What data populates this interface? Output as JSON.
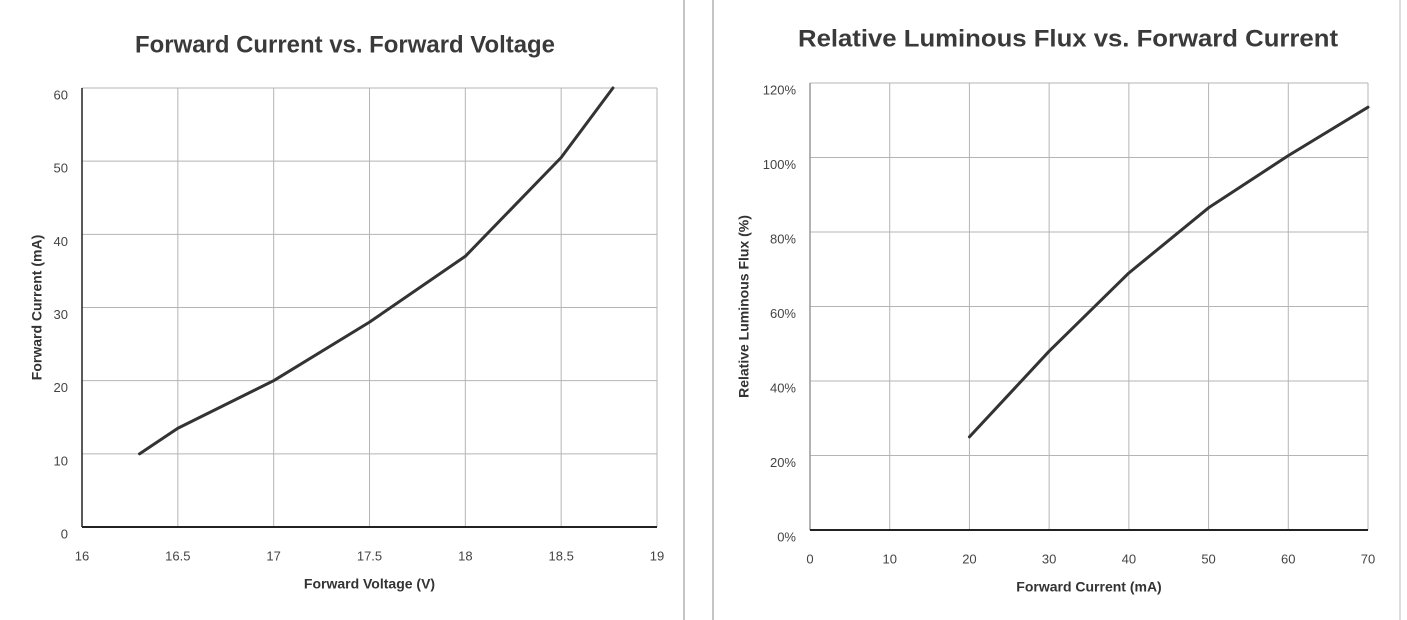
{
  "chart_data": [
    {
      "type": "line",
      "title": "Forward Current vs. Forward Voltage",
      "x_label": "Forward Voltage (V)",
      "y_label": "Forward Current (mA)",
      "x": [
        16.3,
        16.5,
        17,
        17.5,
        18,
        18.5,
        18.77
      ],
      "values": [
        10,
        13.5,
        20,
        28,
        37,
        50.5,
        60
      ],
      "color": "#333333",
      "xlim": [
        16,
        19
      ],
      "xticks": [
        16,
        16.5,
        17,
        17.5,
        18,
        18.5,
        19
      ],
      "ylim": [
        0,
        60
      ],
      "yticks": [
        0,
        10,
        20,
        30,
        40,
        50,
        60
      ],
      "grid": true
    },
    {
      "type": "line",
      "title": "Relative Luminous Flux vs. Forward Current",
      "x_label": "Forward Current (mA)",
      "y_label": "Relative Luminous Flux (%)",
      "x": [
        20,
        30,
        40,
        50,
        60,
        70
      ],
      "values": [
        25,
        48,
        69,
        86.5,
        100.5,
        113.5
      ],
      "color": "#333333",
      "xlim": [
        0,
        70
      ],
      "xticks": [
        0,
        10,
        20,
        30,
        40,
        50,
        60,
        70
      ],
      "ylim": [
        0,
        120
      ],
      "yticks": [
        {
          "value": 0,
          "label": "0%"
        },
        {
          "value": 20,
          "label": "20%"
        },
        {
          "value": 40,
          "label": "40%"
        },
        {
          "value": 60,
          "label": "60%"
        },
        {
          "value": 80,
          "label": "80%"
        },
        {
          "value": 100,
          "label": "100%"
        },
        {
          "value": 120,
          "label": "120%"
        }
      ],
      "grid": true
    }
  ]
}
